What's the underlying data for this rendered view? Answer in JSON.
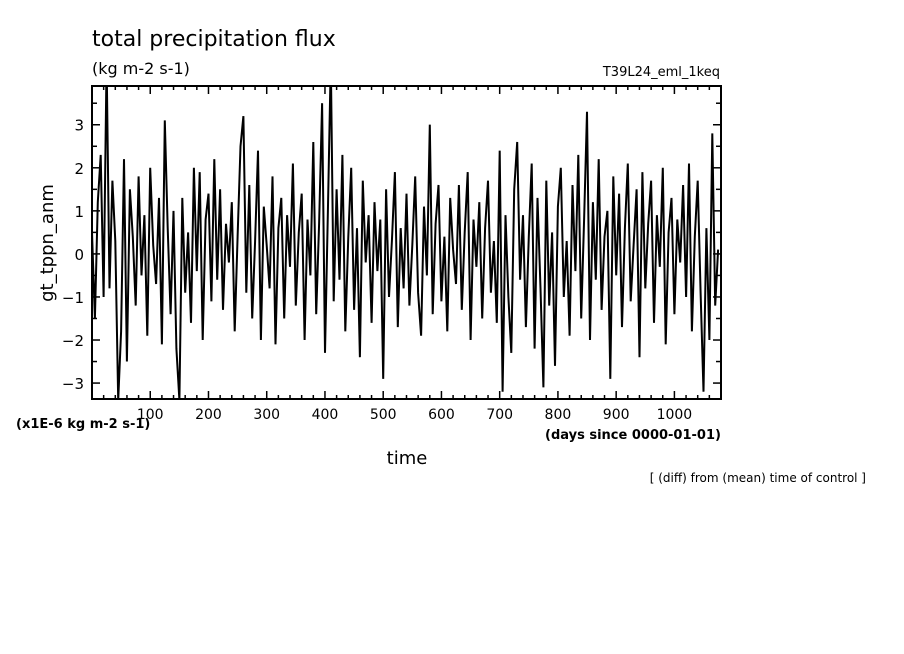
{
  "chart_data": {
    "type": "line",
    "title": "total precipitation flux",
    "subtitle": "(kg m-2 s-1)",
    "run_label": "T39L24_eml_1keq",
    "ylabel": "gt_tppn_anm",
    "yunits": "(x1E-6 kg m-2 s-1)",
    "xlabel": "time",
    "xunits": "(days since 0000-01-01)",
    "footnote": "[ (diff) from (mean) time of control ]",
    "xlim": [
      0,
      1080
    ],
    "ylim": [
      -3.37,
      3.9
    ],
    "xticks": [
      100,
      200,
      300,
      400,
      500,
      600,
      700,
      800,
      900,
      1000
    ],
    "yticks": [
      -3,
      -2,
      -1,
      0,
      1,
      2,
      3
    ],
    "grid": false,
    "line_color": "#000000",
    "x_step_days": 5,
    "series": [
      {
        "values": [
          0.5,
          -1.5,
          1.2,
          2.3,
          -1.0,
          4.5,
          -0.8,
          1.7,
          0.3,
          -3.4,
          -1.8,
          2.2,
          -2.5,
          1.5,
          0.4,
          -1.2,
          1.8,
          -0.5,
          0.9,
          -1.9,
          2.0,
          0.2,
          -0.7,
          1.3,
          -2.1,
          3.1,
          0.6,
          -1.4,
          1.0,
          -2.2,
          -3.4,
          1.3,
          -0.9,
          0.5,
          -1.6,
          2.0,
          -0.4,
          1.9,
          -2.0,
          0.8,
          1.4,
          -1.1,
          2.2,
          -0.6,
          1.5,
          -1.3,
          0.7,
          -0.2,
          1.2,
          -1.8,
          0.4,
          2.5,
          3.2,
          -0.9,
          1.6,
          -1.5,
          0.3,
          2.4,
          -2.0,
          1.1,
          0.2,
          -0.8,
          1.8,
          -2.1,
          0.6,
          1.3,
          -1.5,
          0.9,
          -0.3,
          2.1,
          -1.2,
          0.5,
          1.4,
          -2.0,
          0.8,
          -0.5,
          2.6,
          -1.4,
          0.7,
          3.5,
          -2.3,
          1.0,
          4.5,
          -1.1,
          1.5,
          -0.6,
          2.3,
          -1.8,
          0.4,
          2.0,
          -1.3,
          0.6,
          -2.4,
          1.7,
          -0.2,
          0.9,
          -1.6,
          1.2,
          -0.4,
          0.8,
          -2.9,
          1.5,
          -1.0,
          0.3,
          1.9,
          -1.7,
          0.6,
          -0.8,
          1.4,
          -1.2,
          0.2,
          1.8,
          -0.9,
          -1.9,
          1.1,
          -0.5,
          3.0,
          -1.4,
          0.7,
          1.6,
          -1.1,
          0.4,
          -1.8,
          1.3,
          0.1,
          -0.7,
          1.6,
          -1.3,
          0.5,
          1.9,
          -2.0,
          0.8,
          -0.3,
          1.2,
          -1.5,
          0.6,
          1.7,
          -0.9,
          0.3,
          -1.6,
          2.4,
          -3.2,
          0.9,
          -1.0,
          -2.3,
          1.5,
          2.6,
          -0.6,
          0.9,
          -1.7,
          0.4,
          2.1,
          -2.2,
          1.3,
          -0.8,
          -3.1,
          1.7,
          -1.2,
          0.5,
          -2.6,
          1.1,
          2.0,
          -1.0,
          0.3,
          -1.9,
          1.6,
          -0.4,
          2.3,
          -1.5,
          0.8,
          3.3,
          -2.0,
          1.2,
          -0.6,
          2.2,
          -1.3,
          0.4,
          1.0,
          -2.9,
          1.8,
          -0.5,
          1.4,
          -1.7,
          0.6,
          2.1,
          -1.1,
          0.2,
          1.5,
          -2.4,
          1.9,
          -0.8,
          0.7,
          1.7,
          -1.6,
          0.9,
          -0.3,
          2.0,
          -2.1,
          0.5,
          1.3,
          -1.4,
          0.8,
          -0.2,
          1.6,
          -1.0,
          2.1,
          -1.8,
          0.4,
          1.7,
          -0.9,
          -3.2,
          0.6,
          -2.0,
          2.8,
          -1.2,
          0.1
        ]
      }
    ]
  }
}
